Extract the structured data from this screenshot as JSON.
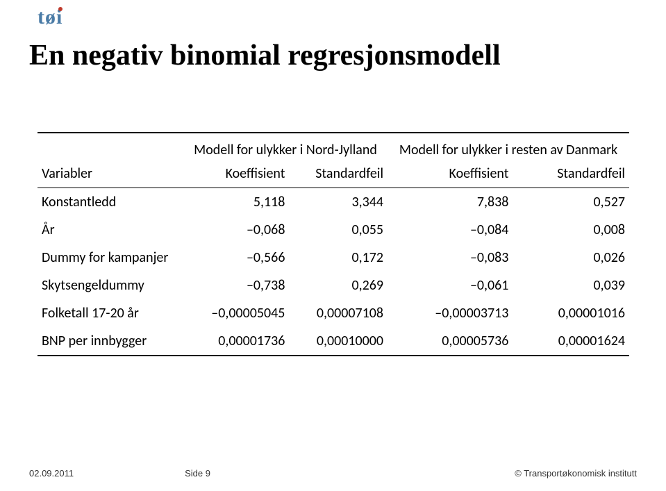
{
  "logo_text": "tøi",
  "title": "En negativ binomial regresjonsmodell",
  "table": {
    "group_headers": [
      "",
      "Modell for ulykker i Nord-Jylland",
      "Modell for ulykker i resten av Danmark"
    ],
    "col_headers": [
      "Variabler",
      "Koeffisient",
      "Standardfeil",
      "Koeffisient",
      "Standardfeil"
    ],
    "rows": [
      {
        "label": "Konstantledd",
        "v": [
          "5,118",
          "3,344",
          "7,838",
          "0,527"
        ]
      },
      {
        "label": "År",
        "v": [
          "–0,068",
          "0,055",
          "–0,084",
          "0,008"
        ]
      },
      {
        "label": "Dummy for kampanjer",
        "v": [
          "–0,566",
          "0,172",
          "–0,083",
          "0,026"
        ]
      },
      {
        "label": "Skytsengeldummy",
        "v": [
          "–0,738",
          "0,269",
          "–0,061",
          "0,039"
        ]
      },
      {
        "label": "Folketall 17-20 år",
        "v": [
          "–0,00005045",
          "0,00007108",
          "–0,00003713",
          "0,00001016"
        ]
      },
      {
        "label": "BNP per innbygger",
        "v": [
          "0,00001736",
          "0,00010000",
          "0,00005736",
          "0,00001624"
        ]
      }
    ]
  },
  "footer": {
    "date": "02.09.2011",
    "page": "Side 9",
    "copyright": "© Transportøkonomisk institutt"
  }
}
